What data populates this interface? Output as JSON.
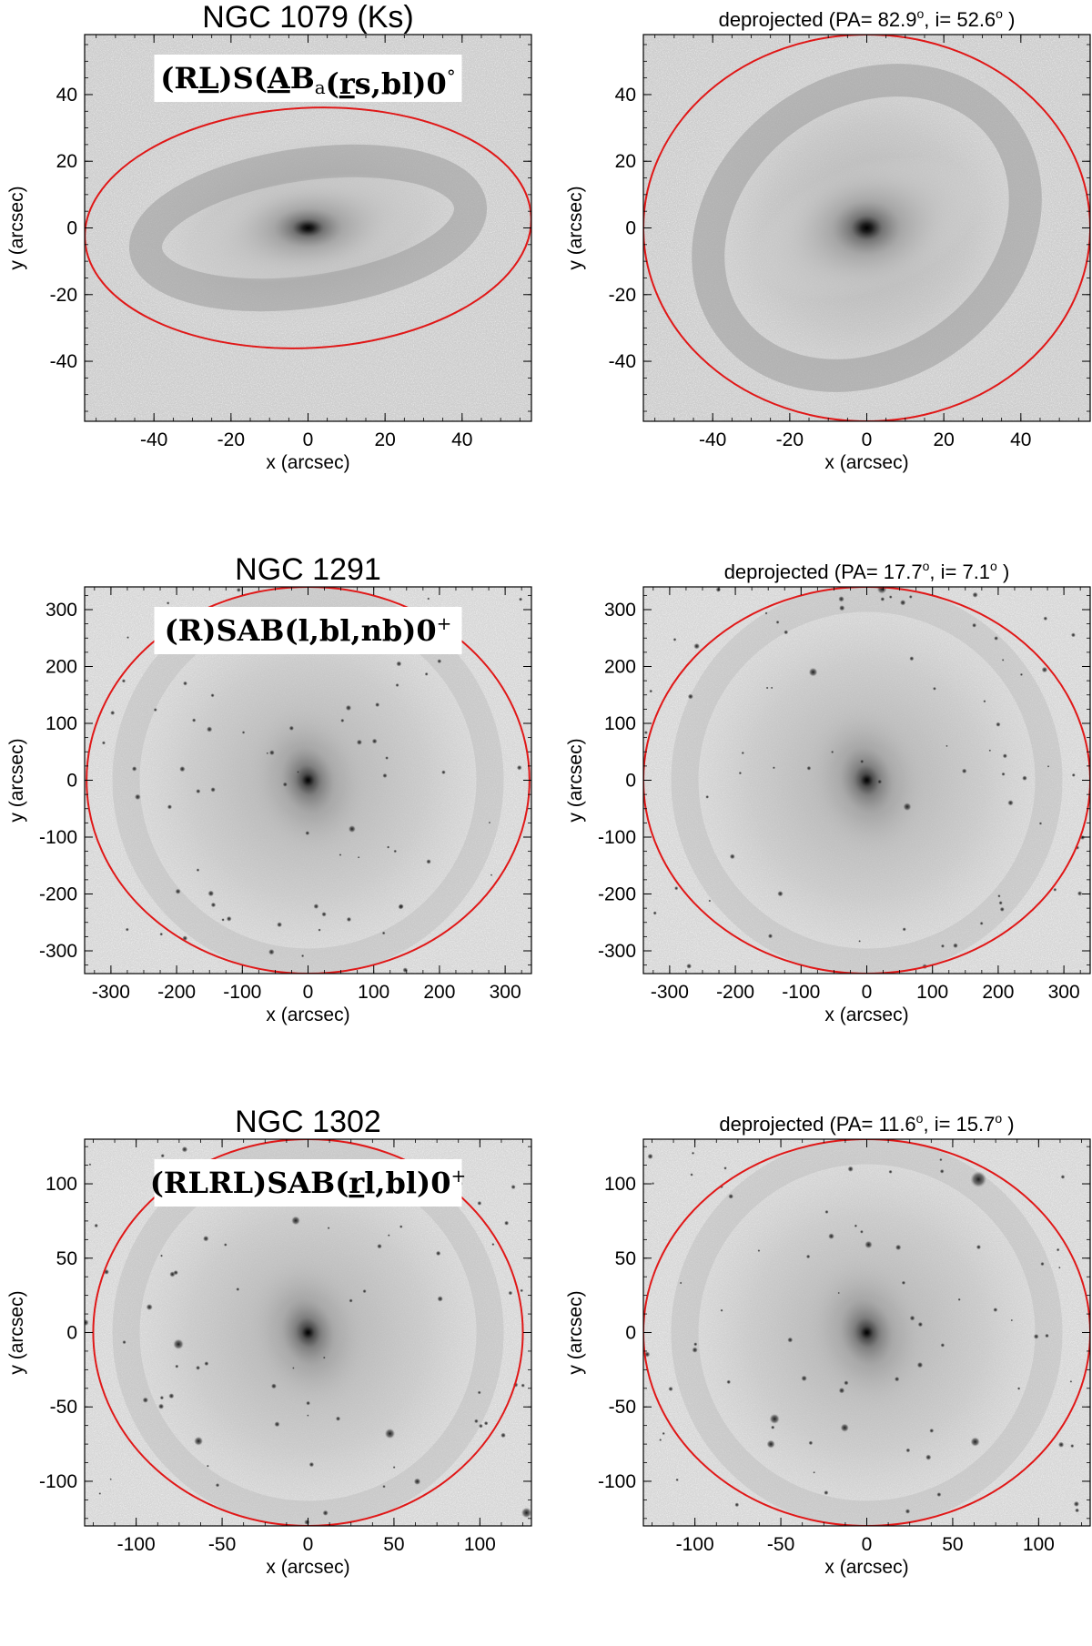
{
  "accent": {
    "ellipse_color": "#e01818",
    "label_box": "#ffffff"
  },
  "panels": [
    {
      "id": "ngc1079",
      "left": {
        "title": "NGC 1079   (Ks)",
        "classification": {
          "parts": [
            {
              "t": "(R"
            },
            {
              "t": "L",
              "u": true
            },
            {
              "t": ")S("
            },
            {
              "t": "A",
              "u": true
            },
            {
              "t": "B"
            },
            {
              "t": "a",
              "sub": true
            },
            {
              "t": "("
            },
            {
              "t": "r",
              "u": true
            },
            {
              "t": "s,bl)0"
            },
            {
              "t": "°",
              "sup": true
            }
          ]
        }
      },
      "right": {
        "title_prefix": "deprojected",
        "pa": "82.9",
        "inc": "52.6"
      },
      "xlabel": "x (arcsec)",
      "ylabel": "y (arcsec)",
      "xlim": [
        -58,
        58
      ],
      "ylim": [
        -58,
        58
      ],
      "ticks": [
        "-40",
        "-20",
        "0",
        "20",
        "40"
      ],
      "left_ellipse": {
        "cx": 0,
        "cy": 0,
        "rx": 58,
        "ry": 36,
        "angle": -3
      },
      "right_ellipse": {
        "cx": 0,
        "cy": 0,
        "rx": 58,
        "ry": 58,
        "angle": 0
      },
      "image": "bar-galaxy"
    },
    {
      "id": "ngc1291",
      "left": {
        "title": "NGC 1291",
        "classification": {
          "parts": [
            {
              "t": "(R)SAB(l,bl,nb)0"
            },
            {
              "t": "+",
              "sup": true
            }
          ]
        }
      },
      "right": {
        "title_prefix": "deprojected",
        "pa": "17.7",
        "inc": "7.1"
      },
      "xlabel": "x (arcsec)",
      "ylabel": "y (arcsec)",
      "xlim": [
        -340,
        340
      ],
      "ylim": [
        -340,
        340
      ],
      "ticks": [
        "-300",
        "-200",
        "-100",
        "0",
        "100",
        "200",
        "300"
      ],
      "left_ellipse": {
        "cx": 0,
        "cy": 0,
        "rx": 337,
        "ry": 340,
        "angle": 0
      },
      "right_ellipse": {
        "cx": 0,
        "cy": 0,
        "rx": 340,
        "ry": 340,
        "angle": 0
      },
      "image": "round-galaxy"
    },
    {
      "id": "ngc1302",
      "left": {
        "title": "NGC 1302",
        "classification": {
          "parts": [
            {
              "t": "(RLRL)SAB("
            },
            {
              "t": "r",
              "u": true
            },
            {
              "t": "l,bl)0"
            },
            {
              "t": "+",
              "sup": true
            }
          ]
        }
      },
      "right": {
        "title_prefix": "deprojected",
        "pa": "11.6",
        "inc": "15.7"
      },
      "xlabel": "x (arcsec)",
      "ylabel": "y (arcsec)",
      "xlim": [
        -130,
        130
      ],
      "ylim": [
        -130,
        130
      ],
      "ticks": [
        "-100",
        "-50",
        "0",
        "50",
        "100"
      ],
      "left_ellipse": {
        "cx": 0,
        "cy": 0,
        "rx": 125,
        "ry": 130,
        "angle": 0
      },
      "right_ellipse": {
        "cx": 0,
        "cy": 0,
        "rx": 130,
        "ry": 130,
        "angle": 0
      },
      "image": "round-galaxy"
    }
  ]
}
